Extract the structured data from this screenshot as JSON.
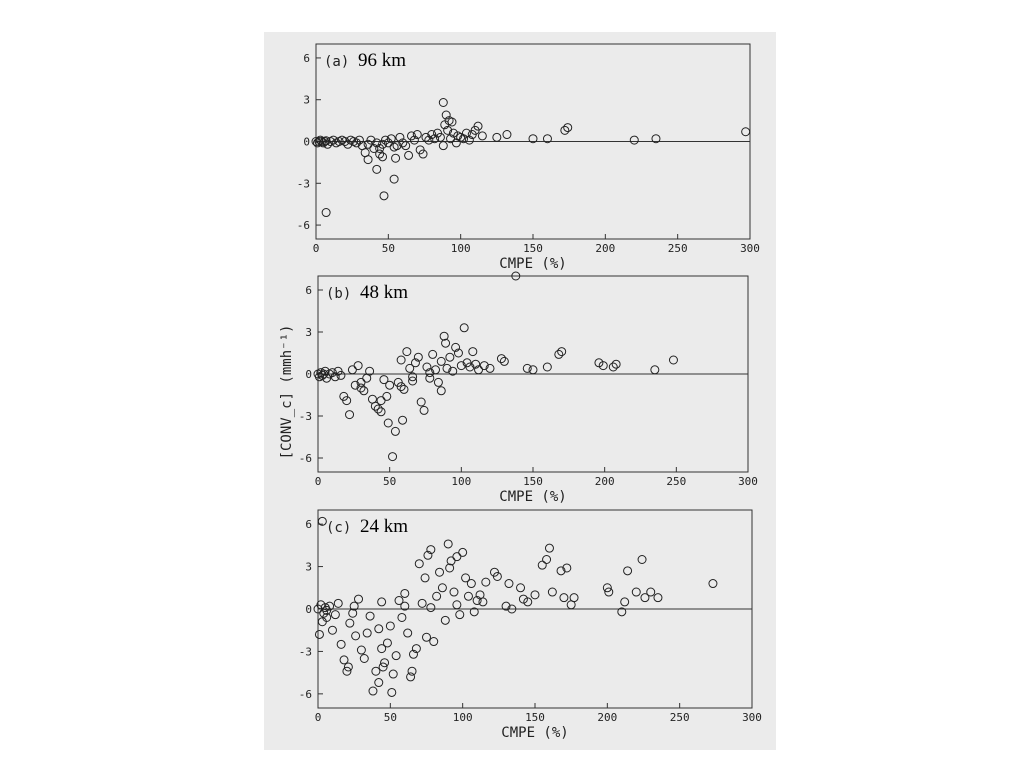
{
  "chart_data": [
    {
      "type": "scatter",
      "panel_label": "(a)",
      "resolution": "96 km",
      "xlabel": "CMPE (%)",
      "ylabel": "[CONV_c] (mmh⁻¹)",
      "xlim": [
        0,
        300
      ],
      "ylim": [
        -7,
        7
      ],
      "xticks": [
        0,
        50,
        100,
        150,
        200,
        250,
        300
      ],
      "yticks": [
        -6,
        -3,
        0,
        3,
        6
      ],
      "zero_line": true,
      "points": [
        [
          0,
          0
        ],
        [
          1,
          -0.1
        ],
        [
          2,
          0
        ],
        [
          3,
          0.1
        ],
        [
          4,
          0
        ],
        [
          5,
          -0.1
        ],
        [
          6,
          0
        ],
        [
          7,
          0.05
        ],
        [
          8,
          -0.2
        ],
        [
          10,
          0
        ],
        [
          12,
          0.1
        ],
        [
          14,
          -0.1
        ],
        [
          16,
          0
        ],
        [
          18,
          0.1
        ],
        [
          20,
          0
        ],
        [
          22,
          -0.2
        ],
        [
          24,
          0.1
        ],
        [
          26,
          0
        ],
        [
          28,
          -0.1
        ],
        [
          30,
          0.1
        ],
        [
          32,
          -0.3
        ],
        [
          34,
          -0.8
        ],
        [
          36,
          -0.2
        ],
        [
          38,
          0.1
        ],
        [
          40,
          -0.5
        ],
        [
          42,
          -0.1
        ],
        [
          44,
          -0.9
        ],
        [
          44,
          -0.5
        ],
        [
          46,
          -1.1
        ],
        [
          46,
          -0.2
        ],
        [
          48,
          0.1
        ],
        [
          50,
          -0.1
        ],
        [
          52,
          0.2
        ],
        [
          54,
          -0.4
        ],
        [
          55,
          -1.2
        ],
        [
          56,
          -0.3
        ],
        [
          58,
          0.3
        ],
        [
          60,
          -0.1
        ],
        [
          62,
          -0.3
        ],
        [
          64,
          -1.0
        ],
        [
          66,
          0.4
        ],
        [
          68,
          0.1
        ],
        [
          70,
          0.5
        ],
        [
          72,
          -0.6
        ],
        [
          74,
          -0.9
        ],
        [
          76,
          0.3
        ],
        [
          78,
          0.1
        ],
        [
          80,
          0.5
        ],
        [
          82,
          0.2
        ],
        [
          84,
          0.6
        ],
        [
          86,
          0.3
        ],
        [
          88,
          -0.3
        ],
        [
          88,
          2.8
        ],
        [
          89,
          1.2
        ],
        [
          90,
          1.9
        ],
        [
          91,
          0.8
        ],
        [
          92,
          1.5
        ],
        [
          93,
          0.2
        ],
        [
          94,
          1.4
        ],
        [
          95,
          0.6
        ],
        [
          97,
          -0.1
        ],
        [
          98,
          0.4
        ],
        [
          100,
          0.3
        ],
        [
          102,
          0.2
        ],
        [
          104,
          0.6
        ],
        [
          106,
          0.1
        ],
        [
          108,
          0.5
        ],
        [
          110,
          0.8
        ],
        [
          112,
          1.1
        ],
        [
          115,
          0.4
        ],
        [
          125,
          0.3
        ],
        [
          132,
          0.5
        ],
        [
          150,
          0.2
        ],
        [
          160,
          0.2
        ],
        [
          172,
          0.8
        ],
        [
          174,
          1.0
        ],
        [
          220,
          0.1
        ],
        [
          235,
          0.2
        ],
        [
          297,
          0.7
        ],
        [
          7,
          -5.1
        ],
        [
          47,
          -3.9
        ],
        [
          54,
          -2.7
        ],
        [
          42,
          -2.0
        ],
        [
          36,
          -1.3
        ]
      ]
    },
    {
      "type": "scatter",
      "panel_label": "(b)",
      "resolution": "48 km",
      "xlabel": "CMPE (%)",
      "ylabel": "[CONV_c] (mmh⁻¹)",
      "xlim": [
        0,
        300
      ],
      "ylim": [
        -7,
        7
      ],
      "xticks": [
        0,
        50,
        100,
        150,
        200,
        250,
        300
      ],
      "yticks": [
        -6,
        -3,
        0,
        3,
        6
      ],
      "zero_line": true,
      "points": [
        [
          0,
          0
        ],
        [
          1,
          -0.2
        ],
        [
          2,
          0.1
        ],
        [
          3,
          -0.1
        ],
        [
          4,
          0
        ],
        [
          5,
          0.2
        ],
        [
          6,
          -0.3
        ],
        [
          8,
          0
        ],
        [
          10,
          0.1
        ],
        [
          12,
          -0.2
        ],
        [
          14,
          0.2
        ],
        [
          16,
          -0.1
        ],
        [
          18,
          -1.6
        ],
        [
          20,
          -1.9
        ],
        [
          22,
          -2.9
        ],
        [
          24,
          0.3
        ],
        [
          26,
          -0.8
        ],
        [
          28,
          0.6
        ],
        [
          30,
          -0.6
        ],
        [
          32,
          -1.2
        ],
        [
          34,
          -0.3
        ],
        [
          36,
          0.2
        ],
        [
          38,
          -1.8
        ],
        [
          40,
          -2.3
        ],
        [
          42,
          -2.5
        ],
        [
          44,
          -1.9
        ],
        [
          46,
          -0.4
        ],
        [
          48,
          -1.6
        ],
        [
          49,
          -3.5
        ],
        [
          50,
          -0.8
        ],
        [
          52,
          -5.9
        ],
        [
          54,
          -4.1
        ],
        [
          56,
          -0.6
        ],
        [
          58,
          1.0
        ],
        [
          59,
          -3.3
        ],
        [
          60,
          -1.1
        ],
        [
          62,
          1.6
        ],
        [
          64,
          0.4
        ],
        [
          66,
          -0.2
        ],
        [
          68,
          0.8
        ],
        [
          70,
          1.2
        ],
        [
          72,
          -2.0
        ],
        [
          74,
          -2.6
        ],
        [
          76,
          0.5
        ],
        [
          78,
          0.1
        ],
        [
          80,
          1.4
        ],
        [
          82,
          0.3
        ],
        [
          84,
          -0.6
        ],
        [
          86,
          0.9
        ],
        [
          88,
          2.7
        ],
        [
          89,
          2.2
        ],
        [
          90,
          0.4
        ],
        [
          92,
          1.2
        ],
        [
          94,
          0.2
        ],
        [
          96,
          1.9
        ],
        [
          98,
          1.5
        ],
        [
          100,
          0.6
        ],
        [
          102,
          3.3
        ],
        [
          104,
          0.8
        ],
        [
          106,
          0.5
        ],
        [
          108,
          1.6
        ],
        [
          110,
          0.7
        ],
        [
          112,
          0.3
        ],
        [
          116,
          0.6
        ],
        [
          120,
          0.4
        ],
        [
          128,
          1.1
        ],
        [
          130,
          0.9
        ],
        [
          138,
          7.0
        ],
        [
          146,
          0.4
        ],
        [
          150,
          0.3
        ],
        [
          160,
          0.5
        ],
        [
          168,
          1.4
        ],
        [
          170,
          1.6
        ],
        [
          196,
          0.8
        ],
        [
          199,
          0.6
        ],
        [
          206,
          0.5
        ],
        [
          208,
          0.7
        ],
        [
          235,
          0.3
        ],
        [
          248,
          1.0
        ],
        [
          44,
          -2.7
        ],
        [
          30,
          -1.0
        ],
        [
          66,
          -0.5
        ],
        [
          86,
          -1.2
        ],
        [
          78,
          -0.3
        ],
        [
          58,
          -0.9
        ]
      ]
    },
    {
      "type": "scatter",
      "panel_label": "(c)",
      "resolution": "24 km",
      "xlabel": "CMPE (%)",
      "ylabel": "[CONV_c] (mmh⁻¹)",
      "xlim": [
        0,
        300
      ],
      "ylim": [
        -7,
        7
      ],
      "xticks": [
        0,
        50,
        100,
        150,
        200,
        250,
        300
      ],
      "yticks": [
        -6,
        -3,
        0,
        3,
        6
      ],
      "zero_line": true,
      "points": [
        [
          3,
          6.2
        ],
        [
          0,
          0
        ],
        [
          1,
          -1.8
        ],
        [
          2,
          0.3
        ],
        [
          3,
          -0.9
        ],
        [
          4,
          -0.3
        ],
        [
          5,
          0.1
        ],
        [
          6,
          -0.6
        ],
        [
          8,
          0.2
        ],
        [
          10,
          -1.5
        ],
        [
          12,
          -0.4
        ],
        [
          14,
          0.4
        ],
        [
          16,
          -2.5
        ],
        [
          18,
          -3.6
        ],
        [
          20,
          -4.4
        ],
        [
          21,
          -4.1
        ],
        [
          22,
          -1.0
        ],
        [
          24,
          -0.3
        ],
        [
          26,
          -1.9
        ],
        [
          28,
          0.7
        ],
        [
          30,
          -2.9
        ],
        [
          32,
          -3.5
        ],
        [
          34,
          -1.7
        ],
        [
          36,
          -0.5
        ],
        [
          38,
          -5.8
        ],
        [
          40,
          -4.4
        ],
        [
          42,
          -5.2
        ],
        [
          42,
          -1.4
        ],
        [
          44,
          -2.8
        ],
        [
          45,
          -4.1
        ],
        [
          46,
          -3.8
        ],
        [
          48,
          -2.4
        ],
        [
          50,
          -1.2
        ],
        [
          51,
          -5.9
        ],
        [
          52,
          -4.6
        ],
        [
          54,
          -3.3
        ],
        [
          56,
          0.6
        ],
        [
          58,
          -0.6
        ],
        [
          60,
          1.1
        ],
        [
          62,
          -1.7
        ],
        [
          64,
          -4.8
        ],
        [
          65,
          -4.4
        ],
        [
          66,
          -3.2
        ],
        [
          68,
          -2.8
        ],
        [
          70,
          3.2
        ],
        [
          72,
          0.4
        ],
        [
          74,
          2.2
        ],
        [
          75,
          -2.0
        ],
        [
          76,
          3.8
        ],
        [
          78,
          4.2
        ],
        [
          80,
          -2.3
        ],
        [
          82,
          0.9
        ],
        [
          84,
          2.6
        ],
        [
          86,
          1.5
        ],
        [
          88,
          -0.8
        ],
        [
          90,
          4.6
        ],
        [
          91,
          2.9
        ],
        [
          92,
          3.4
        ],
        [
          94,
          1.2
        ],
        [
          96,
          3.7
        ],
        [
          98,
          -0.4
        ],
        [
          100,
          4.0
        ],
        [
          102,
          2.2
        ],
        [
          104,
          0.9
        ],
        [
          106,
          1.8
        ],
        [
          108,
          -0.2
        ],
        [
          110,
          0.6
        ],
        [
          112,
          1.0
        ],
        [
          114,
          0.5
        ],
        [
          116,
          1.9
        ],
        [
          122,
          2.6
        ],
        [
          124,
          2.3
        ],
        [
          130,
          0.2
        ],
        [
          132,
          1.8
        ],
        [
          134,
          0.0
        ],
        [
          140,
          1.5
        ],
        [
          142,
          0.7
        ],
        [
          145,
          0.5
        ],
        [
          150,
          1.0
        ],
        [
          155,
          3.1
        ],
        [
          158,
          3.5
        ],
        [
          160,
          4.3
        ],
        [
          162,
          1.2
        ],
        [
          168,
          2.7
        ],
        [
          170,
          0.8
        ],
        [
          172,
          2.9
        ],
        [
          175,
          0.3
        ],
        [
          177,
          0.8
        ],
        [
          200,
          1.5
        ],
        [
          201,
          1.2
        ],
        [
          210,
          -0.2
        ],
        [
          212,
          0.5
        ],
        [
          214,
          2.7
        ],
        [
          220,
          1.2
        ],
        [
          224,
          3.5
        ],
        [
          226,
          0.8
        ],
        [
          230,
          1.2
        ],
        [
          235,
          0.8
        ],
        [
          273,
          1.8
        ],
        [
          6,
          -0.1
        ],
        [
          25,
          0.2
        ],
        [
          44,
          0.5
        ],
        [
          60,
          0.2
        ],
        [
          78,
          0.1
        ],
        [
          96,
          0.3
        ]
      ]
    }
  ]
}
